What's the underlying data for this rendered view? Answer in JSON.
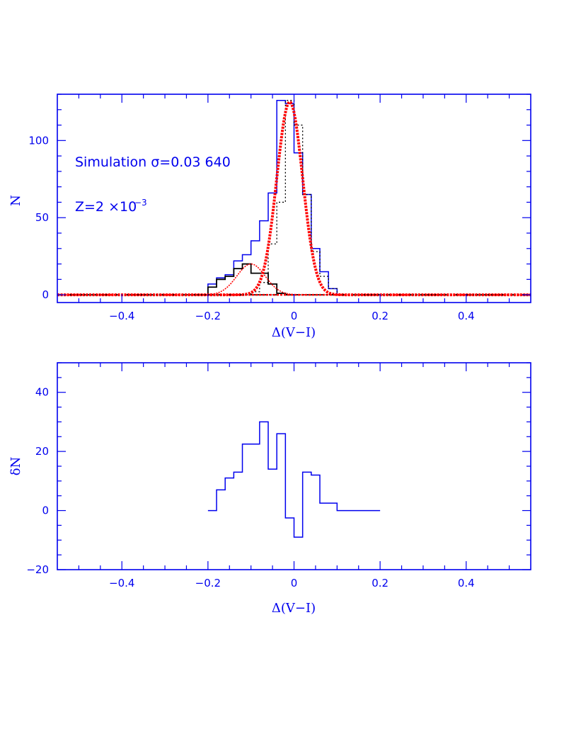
{
  "chart_data": [
    {
      "type": "histogram",
      "title": "",
      "xlabel": "Δ(V−I)",
      "ylabel": "N",
      "xlim": [
        -0.55,
        0.55
      ],
      "ylim": [
        -5,
        130
      ],
      "xticks": [
        -0.4,
        -0.2,
        0,
        0.2,
        0.4
      ],
      "xtick_labels": [
        "−0.4",
        "−0.2",
        "0",
        "0.2",
        "0.4"
      ],
      "yticks": [
        0,
        50,
        100
      ],
      "ytick_labels": [
        "0",
        "50",
        "100"
      ],
      "annotations": {
        "sim_text": "Simulation σ=0.03 640",
        "z_text": "Z=2 ×10",
        "z_exp": "−3"
      },
      "series": [
        {
          "kind": "step-blue",
          "color": "#0000ee",
          "edges": [
            -0.2,
            -0.18,
            -0.16,
            -0.14,
            -0.12,
            -0.1,
            -0.08,
            -0.06,
            -0.04,
            -0.02,
            0,
            0.02,
            0.04,
            0.06,
            0.08,
            0.1
          ],
          "values": [
            7,
            11,
            13,
            22,
            26,
            35,
            48,
            66,
            126,
            124,
            92,
            65,
            30,
            15,
            4
          ]
        },
        {
          "kind": "step-black-main",
          "color": "#000000",
          "edges": [
            -0.1,
            -0.08,
            -0.06,
            -0.04,
            -0.02,
            0,
            0.02,
            0.04,
            0.06,
            0.08,
            0.1
          ],
          "values": [
            2,
            8,
            33,
            60,
            126,
            110,
            65,
            28,
            12,
            4
          ]
        },
        {
          "kind": "step-black-secondary",
          "color": "#000000",
          "edges": [
            -0.2,
            -0.18,
            -0.16,
            -0.14,
            -0.12,
            -0.1,
            -0.08,
            -0.06,
            -0.04,
            -0.02,
            0
          ],
          "values": [
            5,
            10,
            12,
            17,
            20,
            14,
            14,
            7,
            1,
            0
          ]
        },
        {
          "kind": "gauss-main",
          "color": "#ff0000",
          "amplitude": 125,
          "mu": -0.01,
          "sigma": 0.03
        },
        {
          "kind": "gauss-secondary",
          "color": "#ff0000",
          "amplitude": 20,
          "mu": -0.1,
          "sigma": 0.033
        }
      ]
    },
    {
      "type": "step",
      "title": "",
      "xlabel": "Δ(V−I)",
      "ylabel": "δN",
      "xlim": [
        -0.55,
        0.55
      ],
      "ylim": [
        -20,
        50
      ],
      "xticks": [
        -0.4,
        -0.2,
        0,
        0.2,
        0.4
      ],
      "xtick_labels": [
        "−0.4",
        "−0.2",
        "0",
        "0.2",
        "0.4"
      ],
      "yticks": [
        -20,
        0,
        20,
        40
      ],
      "ytick_labels": [
        "−20",
        "0",
        "20",
        "40"
      ],
      "series": [
        {
          "color": "#0000ee",
          "edges": [
            -0.2,
            -0.18,
            -0.16,
            -0.14,
            -0.12,
            -0.1,
            -0.08,
            -0.06,
            -0.04,
            -0.02,
            0,
            0.02,
            0.04,
            0.06,
            0.08,
            0.1,
            0.2
          ],
          "values": [
            0,
            7,
            11,
            13,
            22.5,
            22.5,
            30,
            14,
            26,
            -2.5,
            -9,
            13,
            12,
            2.5,
            2.5,
            0
          ]
        }
      ]
    }
  ]
}
